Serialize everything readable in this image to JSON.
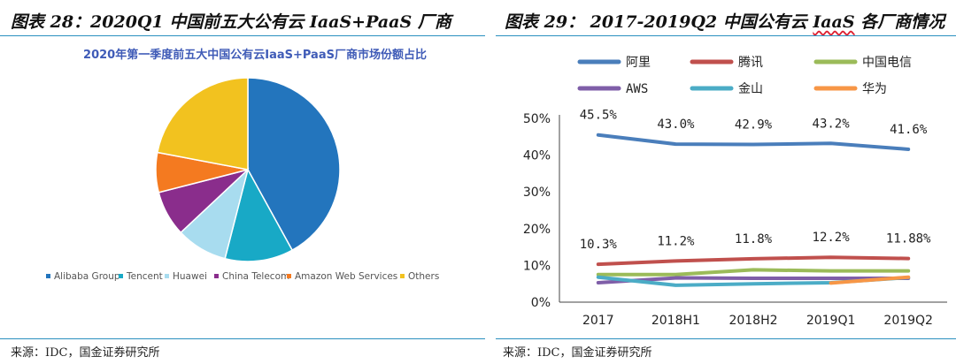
{
  "left_panel": {
    "figure_title": "图表 28：2020Q1 中国前五大公有云 IaaS+PaaS 厂商",
    "source": "来源：IDC，国金证券研究所"
  },
  "right_panel": {
    "figure_title_prefix": "图表 29： 2017-2019Q2 中国公有云",
    "figure_title_keyword": "IaaS",
    "figure_title_suffix": "各厂商情况",
    "source": "来源：IDC，国金证券研究所"
  },
  "chart_data": [
    {
      "type": "pie",
      "title": "2020年第一季度前五大中国公有云IaaS+PaaS厂商市场份额占比",
      "slices": [
        {
          "name": "Alibaba Group",
          "value": 42.0,
          "color": "#2375bd"
        },
        {
          "name": "Tencent",
          "value": 12.0,
          "color": "#18a9c6"
        },
        {
          "name": "Huawei",
          "value": 9.0,
          "color": "#a8dcef"
        },
        {
          "name": "China Telecom",
          "value": 8.0,
          "color": "#8a2d8c"
        },
        {
          "name": "Amazon Web Services",
          "value": 7.0,
          "color": "#f47a20"
        },
        {
          "name": "Others",
          "value": 22.0,
          "color": "#f2c21f"
        }
      ],
      "legend_placement": "bottom"
    },
    {
      "type": "line",
      "categories": [
        "2017",
        "2018H1",
        "2018H2",
        "2019Q1",
        "2019Q2"
      ],
      "ylim": [
        0,
        50
      ],
      "yticks": [
        "0%",
        "10%",
        "20%",
        "30%",
        "40%",
        "50%"
      ],
      "grid": false,
      "legend_placement": "top",
      "series": [
        {
          "name": "阿里",
          "color": "#4a7ebb",
          "values": [
            45.5,
            43.0,
            42.9,
            43.2,
            41.6
          ],
          "labels": [
            "45.5%",
            "43.0%",
            "42.9%",
            "43.2%",
            "41.6%"
          ]
        },
        {
          "name": "腾讯",
          "color": "#c0504d",
          "values": [
            10.3,
            11.2,
            11.8,
            12.2,
            11.88
          ],
          "labels": [
            "10.3%",
            "11.2%",
            "11.8%",
            "12.2%",
            "11.88%"
          ]
        },
        {
          "name": "中国电信",
          "color": "#9bbb59",
          "values": [
            7.5,
            7.5,
            8.8,
            8.5,
            8.5
          ]
        },
        {
          "name": "AWS",
          "color": "#7f5ea8",
          "values": [
            5.3,
            6.6,
            6.5,
            6.5,
            6.5
          ]
        },
        {
          "name": "金山",
          "color": "#4bacc6",
          "values": [
            6.8,
            4.6,
            5.0,
            5.3,
            6.7
          ]
        },
        {
          "name": "华为",
          "color": "#f79646",
          "values": [
            null,
            null,
            null,
            5.2,
            6.8
          ]
        }
      ]
    }
  ]
}
